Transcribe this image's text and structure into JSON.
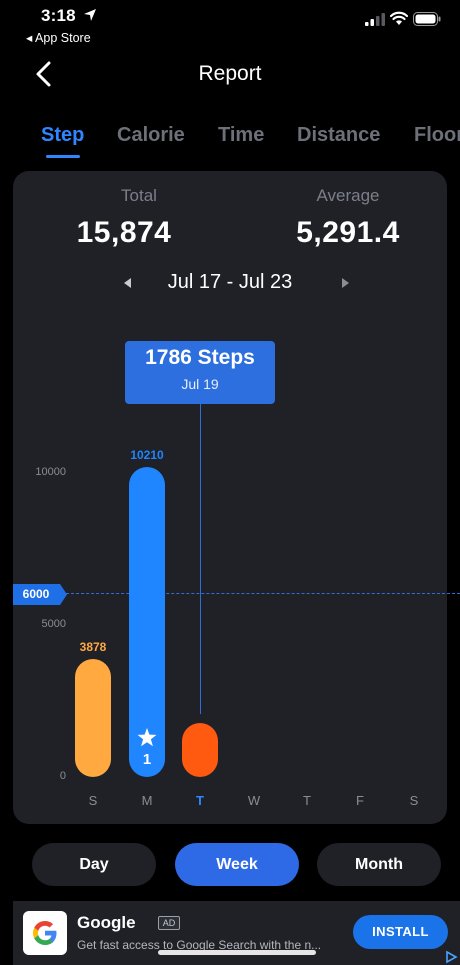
{
  "status_bar": {
    "time": "3:18",
    "back_app": "◂ App Store"
  },
  "header": {
    "title": "Report"
  },
  "tabs": [
    {
      "label": "Step",
      "active": true
    },
    {
      "label": "Calorie",
      "active": false
    },
    {
      "label": "Time",
      "active": false
    },
    {
      "label": "Distance",
      "active": false
    },
    {
      "label": "Floor",
      "active": false
    }
  ],
  "summary": {
    "total_label": "Total",
    "total_value": "15,874",
    "average_label": "Average",
    "average_value": "5,291.4"
  },
  "date_range": "Jul 17 - Jul 23",
  "tooltip": {
    "value": "1786 Steps",
    "date": "Jul 19"
  },
  "goal_label": "6000",
  "star_count": "1",
  "chart_data": {
    "type": "bar",
    "categories": [
      "S",
      "M",
      "T",
      "W",
      "T",
      "F",
      "S"
    ],
    "values": [
      3878,
      10210,
      1786,
      0,
      0,
      0,
      0
    ],
    "value_labels": [
      "3878",
      "10210",
      "",
      "",
      "",
      "",
      ""
    ],
    "y_ticks": [
      "0",
      "5000",
      "10000"
    ],
    "goal": 6000,
    "selected_index": 2,
    "bar_colors": [
      "#ffa940",
      "#1f86ff",
      "#ff5a10",
      "",
      "",
      "",
      ""
    ]
  },
  "period": [
    {
      "label": "Day",
      "active": false
    },
    {
      "label": "Week",
      "active": true
    },
    {
      "label": "Month",
      "active": false
    }
  ],
  "ad": {
    "title": "Google",
    "badge": "AD",
    "description": "Get fast access to Google Search with the n...",
    "install": "INSTALL"
  },
  "icons": {
    "back": "chevron-left-icon",
    "location": "location-arrow-icon",
    "prev": "triangle-left-icon",
    "next": "triangle-right-icon",
    "star": "star-icon"
  }
}
